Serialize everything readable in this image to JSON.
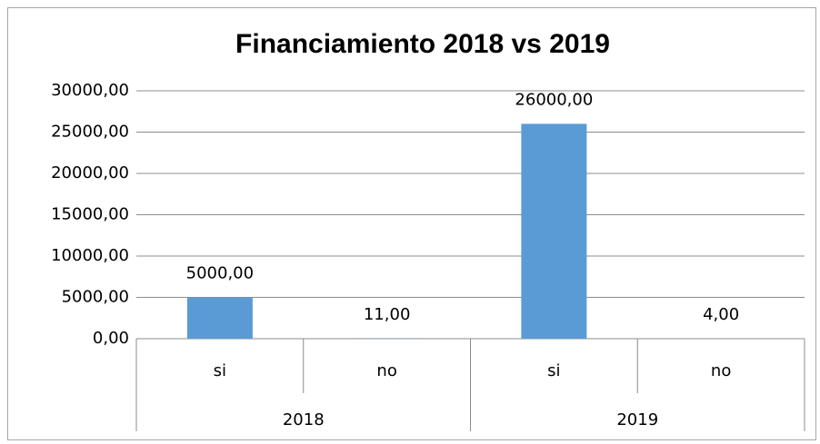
{
  "chart_data": {
    "type": "bar",
    "title": "Financiamiento 2018 vs 2019",
    "categories": [
      "si",
      "no",
      "si",
      "no"
    ],
    "groups": [
      "2018",
      "2019"
    ],
    "values": [
      5000,
      11,
      26000,
      4
    ],
    "value_labels": [
      "5000,00",
      "11,00",
      "26000,00",
      "4,00"
    ],
    "color": "#5b9bd5",
    "ylim": [
      0,
      30000
    ],
    "yticks": [
      {
        "value": 0,
        "label": "0,00"
      },
      {
        "value": 5000,
        "label": "5000,00"
      },
      {
        "value": 10000,
        "label": "10000,00"
      },
      {
        "value": 15000,
        "label": "15000,00"
      },
      {
        "value": 20000,
        "label": "20000,00"
      },
      {
        "value": 25000,
        "label": "25000,00"
      },
      {
        "value": 30000,
        "label": "30000,00"
      }
    ],
    "grid": true
  }
}
